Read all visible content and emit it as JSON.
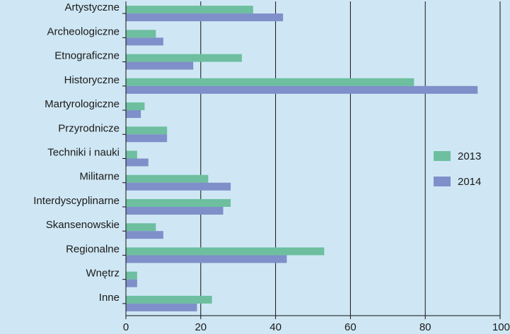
{
  "chart_data": {
    "type": "bar",
    "orientation": "horizontal",
    "categories": [
      "Artystyczne",
      "Archeologiczne",
      "Etnograficzne",
      "Historyczne",
      "Martyrologiczne",
      "Przyrodnicze",
      "Techniki i nauki",
      "Militarne",
      "Interdyscyplinarne",
      "Skansenowskie",
      "Regionalne",
      "Wnętrz",
      "Inne"
    ],
    "series": [
      {
        "name": "2013",
        "color": "#6dbf9f",
        "values": [
          34,
          8,
          31,
          77,
          5,
          11,
          3,
          22,
          28,
          8,
          53,
          3,
          23
        ]
      },
      {
        "name": "2014",
        "color": "#7f8fc9",
        "values": [
          42,
          10,
          18,
          94,
          4,
          11,
          6,
          28,
          26,
          10,
          43,
          3,
          19
        ]
      }
    ],
    "xlim": [
      0,
      100
    ],
    "xticks": [
      0,
      20,
      40,
      60,
      80,
      100
    ],
    "title": "",
    "xlabel": "",
    "ylabel": "",
    "grid": "vertical",
    "legend_position": "right",
    "background": "#cfe7f4"
  }
}
